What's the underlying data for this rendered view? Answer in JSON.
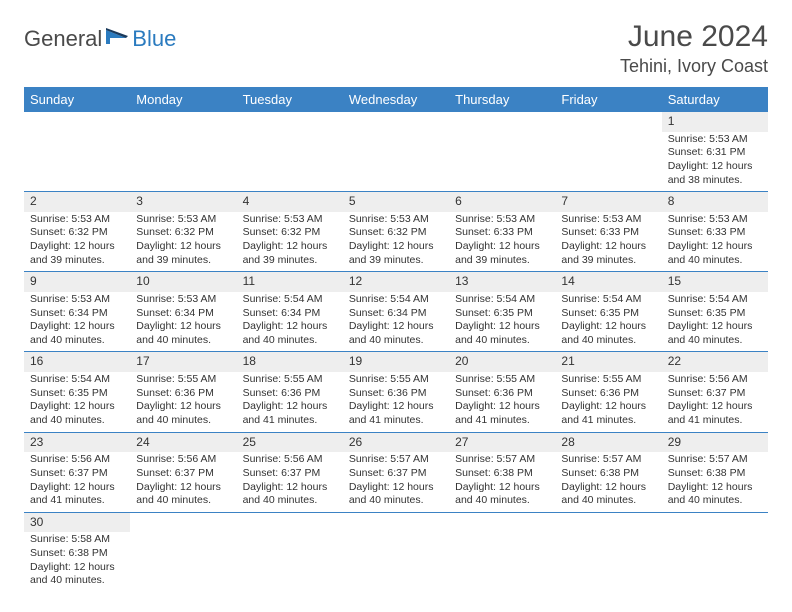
{
  "logo": {
    "part1": "General",
    "part2": "Blue"
  },
  "title": "June 2024",
  "location": "Tehini, Ivory Coast",
  "colors": {
    "header_bg": "#3b82c4",
    "header_text": "#ffffff",
    "daynum_bg": "#eeeeee",
    "border": "#3b82c4",
    "text": "#333333",
    "logo_gray": "#4a4a4a",
    "logo_blue": "#2b7bbf"
  },
  "weekdays": [
    "Sunday",
    "Monday",
    "Tuesday",
    "Wednesday",
    "Thursday",
    "Friday",
    "Saturday"
  ],
  "weeks": [
    [
      null,
      null,
      null,
      null,
      null,
      null,
      {
        "n": "1",
        "sr": "Sunrise: 5:53 AM",
        "ss": "Sunset: 6:31 PM",
        "d1": "Daylight: 12 hours",
        "d2": "and 38 minutes."
      }
    ],
    [
      {
        "n": "2",
        "sr": "Sunrise: 5:53 AM",
        "ss": "Sunset: 6:32 PM",
        "d1": "Daylight: 12 hours",
        "d2": "and 39 minutes."
      },
      {
        "n": "3",
        "sr": "Sunrise: 5:53 AM",
        "ss": "Sunset: 6:32 PM",
        "d1": "Daylight: 12 hours",
        "d2": "and 39 minutes."
      },
      {
        "n": "4",
        "sr": "Sunrise: 5:53 AM",
        "ss": "Sunset: 6:32 PM",
        "d1": "Daylight: 12 hours",
        "d2": "and 39 minutes."
      },
      {
        "n": "5",
        "sr": "Sunrise: 5:53 AM",
        "ss": "Sunset: 6:32 PM",
        "d1": "Daylight: 12 hours",
        "d2": "and 39 minutes."
      },
      {
        "n": "6",
        "sr": "Sunrise: 5:53 AM",
        "ss": "Sunset: 6:33 PM",
        "d1": "Daylight: 12 hours",
        "d2": "and 39 minutes."
      },
      {
        "n": "7",
        "sr": "Sunrise: 5:53 AM",
        "ss": "Sunset: 6:33 PM",
        "d1": "Daylight: 12 hours",
        "d2": "and 39 minutes."
      },
      {
        "n": "8",
        "sr": "Sunrise: 5:53 AM",
        "ss": "Sunset: 6:33 PM",
        "d1": "Daylight: 12 hours",
        "d2": "and 40 minutes."
      }
    ],
    [
      {
        "n": "9",
        "sr": "Sunrise: 5:53 AM",
        "ss": "Sunset: 6:34 PM",
        "d1": "Daylight: 12 hours",
        "d2": "and 40 minutes."
      },
      {
        "n": "10",
        "sr": "Sunrise: 5:53 AM",
        "ss": "Sunset: 6:34 PM",
        "d1": "Daylight: 12 hours",
        "d2": "and 40 minutes."
      },
      {
        "n": "11",
        "sr": "Sunrise: 5:54 AM",
        "ss": "Sunset: 6:34 PM",
        "d1": "Daylight: 12 hours",
        "d2": "and 40 minutes."
      },
      {
        "n": "12",
        "sr": "Sunrise: 5:54 AM",
        "ss": "Sunset: 6:34 PM",
        "d1": "Daylight: 12 hours",
        "d2": "and 40 minutes."
      },
      {
        "n": "13",
        "sr": "Sunrise: 5:54 AM",
        "ss": "Sunset: 6:35 PM",
        "d1": "Daylight: 12 hours",
        "d2": "and 40 minutes."
      },
      {
        "n": "14",
        "sr": "Sunrise: 5:54 AM",
        "ss": "Sunset: 6:35 PM",
        "d1": "Daylight: 12 hours",
        "d2": "and 40 minutes."
      },
      {
        "n": "15",
        "sr": "Sunrise: 5:54 AM",
        "ss": "Sunset: 6:35 PM",
        "d1": "Daylight: 12 hours",
        "d2": "and 40 minutes."
      }
    ],
    [
      {
        "n": "16",
        "sr": "Sunrise: 5:54 AM",
        "ss": "Sunset: 6:35 PM",
        "d1": "Daylight: 12 hours",
        "d2": "and 40 minutes."
      },
      {
        "n": "17",
        "sr": "Sunrise: 5:55 AM",
        "ss": "Sunset: 6:36 PM",
        "d1": "Daylight: 12 hours",
        "d2": "and 40 minutes."
      },
      {
        "n": "18",
        "sr": "Sunrise: 5:55 AM",
        "ss": "Sunset: 6:36 PM",
        "d1": "Daylight: 12 hours",
        "d2": "and 41 minutes."
      },
      {
        "n": "19",
        "sr": "Sunrise: 5:55 AM",
        "ss": "Sunset: 6:36 PM",
        "d1": "Daylight: 12 hours",
        "d2": "and 41 minutes."
      },
      {
        "n": "20",
        "sr": "Sunrise: 5:55 AM",
        "ss": "Sunset: 6:36 PM",
        "d1": "Daylight: 12 hours",
        "d2": "and 41 minutes."
      },
      {
        "n": "21",
        "sr": "Sunrise: 5:55 AM",
        "ss": "Sunset: 6:36 PM",
        "d1": "Daylight: 12 hours",
        "d2": "and 41 minutes."
      },
      {
        "n": "22",
        "sr": "Sunrise: 5:56 AM",
        "ss": "Sunset: 6:37 PM",
        "d1": "Daylight: 12 hours",
        "d2": "and 41 minutes."
      }
    ],
    [
      {
        "n": "23",
        "sr": "Sunrise: 5:56 AM",
        "ss": "Sunset: 6:37 PM",
        "d1": "Daylight: 12 hours",
        "d2": "and 41 minutes."
      },
      {
        "n": "24",
        "sr": "Sunrise: 5:56 AM",
        "ss": "Sunset: 6:37 PM",
        "d1": "Daylight: 12 hours",
        "d2": "and 40 minutes."
      },
      {
        "n": "25",
        "sr": "Sunrise: 5:56 AM",
        "ss": "Sunset: 6:37 PM",
        "d1": "Daylight: 12 hours",
        "d2": "and 40 minutes."
      },
      {
        "n": "26",
        "sr": "Sunrise: 5:57 AM",
        "ss": "Sunset: 6:37 PM",
        "d1": "Daylight: 12 hours",
        "d2": "and 40 minutes."
      },
      {
        "n": "27",
        "sr": "Sunrise: 5:57 AM",
        "ss": "Sunset: 6:38 PM",
        "d1": "Daylight: 12 hours",
        "d2": "and 40 minutes."
      },
      {
        "n": "28",
        "sr": "Sunrise: 5:57 AM",
        "ss": "Sunset: 6:38 PM",
        "d1": "Daylight: 12 hours",
        "d2": "and 40 minutes."
      },
      {
        "n": "29",
        "sr": "Sunrise: 5:57 AM",
        "ss": "Sunset: 6:38 PM",
        "d1": "Daylight: 12 hours",
        "d2": "and 40 minutes."
      }
    ],
    [
      {
        "n": "30",
        "sr": "Sunrise: 5:58 AM",
        "ss": "Sunset: 6:38 PM",
        "d1": "Daylight: 12 hours",
        "d2": "and 40 minutes."
      },
      null,
      null,
      null,
      null,
      null,
      null
    ]
  ]
}
